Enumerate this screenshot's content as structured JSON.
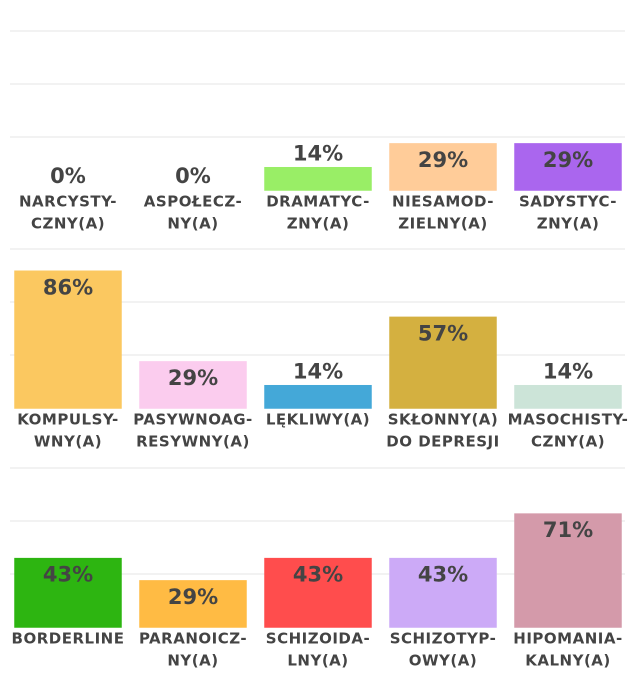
{
  "chart_data": {
    "type": "bar",
    "categories": [
      [
        "NARCYSTY-",
        "CZNY(A)"
      ],
      [
        "ASPOŁECZ-",
        "NY(A)"
      ],
      [
        "DRAMATYC-",
        "ZNY(A)"
      ],
      [
        "NIESAMOD-",
        "ZIELNY(A)"
      ],
      [
        "SADYSTYC-",
        "ZNY(A)"
      ],
      [
        "KOMPULSY-",
        "WNY(A)"
      ],
      [
        "PASYWNOAG-",
        "RESYWNY(A)"
      ],
      [
        "LĘKLIWY(A)"
      ],
      [
        "SKŁONNY(A)",
        "DO DEPRESJI"
      ],
      [
        "MASOCHISTY-",
        "CZNY(A)"
      ],
      [
        "BORDERLINE"
      ],
      [
        "PARANOICZ-",
        "NY(A)"
      ],
      [
        "SCHIZOIDA-",
        "LNY(A)"
      ],
      [
        "SCHIZOTYP-",
        "OWY(A)"
      ],
      [
        "HIPOMANIA-",
        "KALNY(A)"
      ]
    ],
    "values": [
      0,
      0,
      14,
      29,
      29,
      86,
      29,
      14,
      57,
      14,
      43,
      29,
      43,
      43,
      71
    ],
    "value_labels": [
      "0%",
      "0%",
      "14%",
      "29%",
      "29%",
      "86%",
      "29%",
      "14%",
      "57%",
      "14%",
      "43%",
      "29%",
      "43%",
      "43%",
      "71%"
    ],
    "colors": [
      "#4fc3d3",
      "#e8605a",
      "#99ee66",
      "#ffcc99",
      "#aa66ee",
      "#fbc860",
      "#fbccee",
      "#44a8d8",
      "#d4b040",
      "#cce4d8",
      "#2db511",
      "#ffbb44",
      "#ff4d4d",
      "#ccaaf7",
      "#d49aaa"
    ],
    "ylim": [
      0,
      100
    ],
    "yticks": [
      33.3,
      66.7,
      100
    ],
    "grid": true
  }
}
